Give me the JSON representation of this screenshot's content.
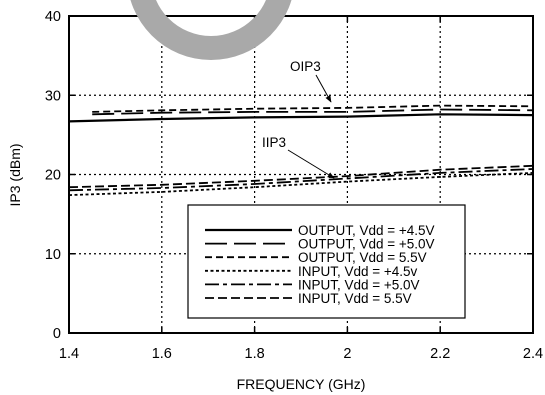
{
  "chart_data": {
    "type": "line",
    "xlabel": "FREQUENCY (GHz)",
    "ylabel": "IP3 (dBm)",
    "xlim": [
      1.4,
      2.4
    ],
    "ylim": [
      0,
      40
    ],
    "xticks": [
      1.4,
      1.6,
      1.8,
      2.0,
      2.2,
      2.4
    ],
    "xtick_labels": [
      "1.4",
      "1.6",
      "1.8",
      "2",
      "2.2",
      "2.4"
    ],
    "yticks": [
      0,
      10,
      20,
      30,
      40
    ],
    "ytick_labels": [
      "0",
      "10",
      "20",
      "30",
      "40"
    ],
    "grid": true,
    "grid_style": "dotted",
    "legend_position": "lower-right",
    "series": [
      {
        "name": "OUTPUT, Vdd = +4.5V",
        "line_style": "solid",
        "x": [
          1.4,
          1.6,
          1.8,
          2.0,
          2.2,
          2.4
        ],
        "y": [
          26.7,
          27.0,
          27.2,
          27.3,
          27.6,
          27.5
        ]
      },
      {
        "name": "OUTPUT, Vdd = +5.0V",
        "line_style": "long-dash",
        "x": [
          1.45,
          1.6,
          1.8,
          2.0,
          2.2,
          2.4
        ],
        "y": [
          27.6,
          27.8,
          27.9,
          27.9,
          28.2,
          28.1
        ]
      },
      {
        "name": "OUTPUT, Vdd = 5.5V",
        "line_style": "short-dash",
        "x": [
          1.45,
          1.6,
          1.8,
          2.0,
          2.2,
          2.4
        ],
        "y": [
          27.9,
          28.1,
          28.3,
          28.4,
          28.7,
          28.6
        ]
      },
      {
        "name": "INPUT, Vdd = +4.5v",
        "line_style": "dotted",
        "x": [
          1.4,
          1.6,
          1.8,
          2.0,
          2.2,
          2.4
        ],
        "y": [
          17.4,
          17.8,
          18.4,
          19.1,
          19.7,
          20.2
        ]
      },
      {
        "name": "INPUT, Vdd = +5.0V",
        "line_style": "dash-dot",
        "x": [
          1.4,
          1.6,
          1.8,
          2.0,
          2.2,
          2.4
        ],
        "y": [
          18.0,
          18.3,
          18.8,
          19.5,
          20.2,
          20.7
        ]
      },
      {
        "name": "INPUT, Vdd = 5.5V",
        "line_style": "dash",
        "x": [
          1.4,
          1.6,
          1.8,
          2.0,
          2.2,
          2.4
        ],
        "y": [
          18.4,
          18.7,
          19.2,
          19.8,
          20.6,
          21.1
        ]
      }
    ],
    "annotations": [
      {
        "text": "OIP3"
      },
      {
        "text": "IIP3"
      }
    ]
  },
  "colors": {
    "ink": "#000000",
    "background": "#ffffff",
    "watermark": "#a9a9a9"
  }
}
